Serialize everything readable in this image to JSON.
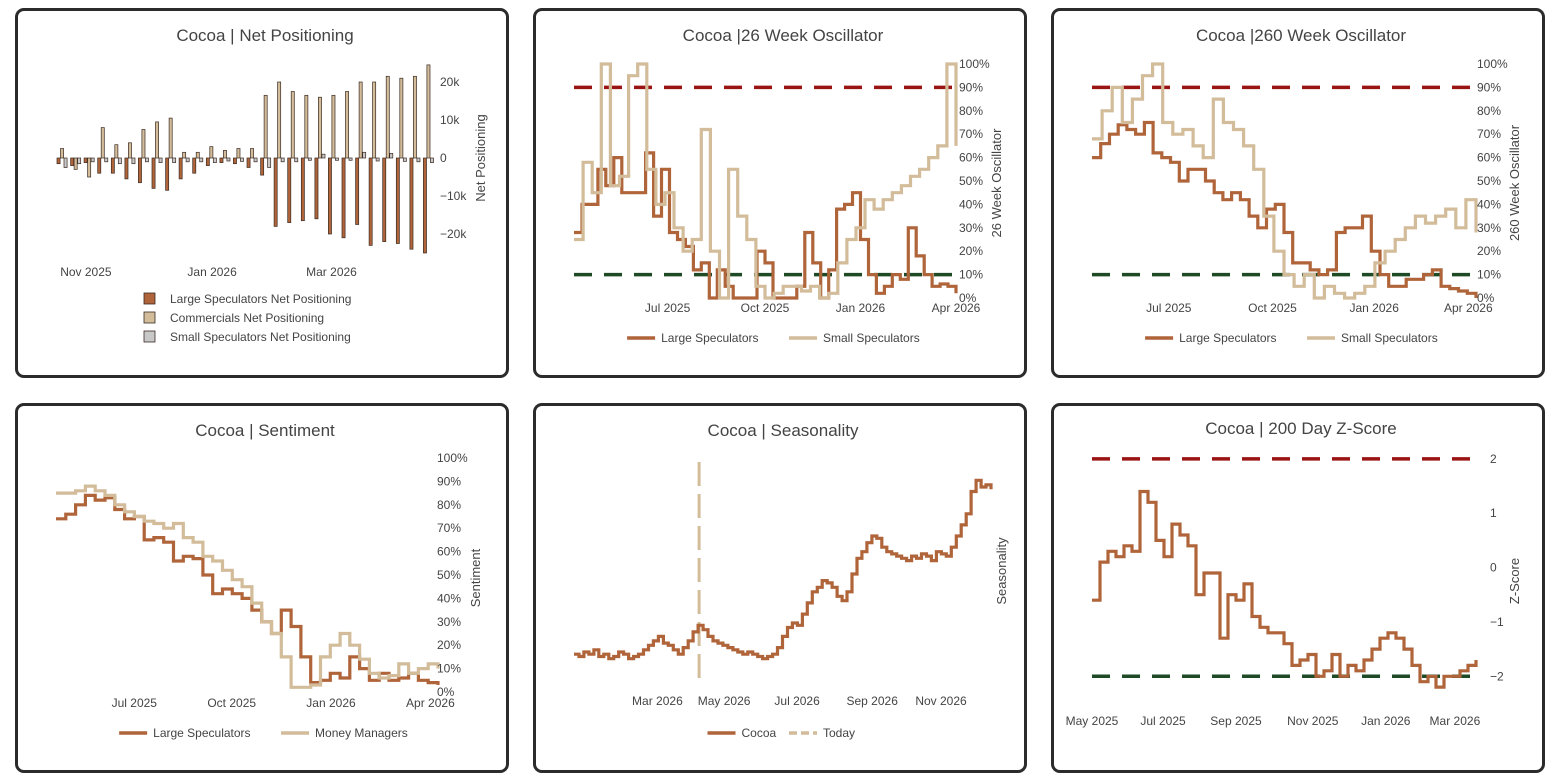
{
  "chart_data": [
    {
      "id": "net",
      "type": "bar",
      "title": "Cocoa | Net Positioning",
      "ylabel": "Net Positioning",
      "ylim": [
        -26000,
        26000
      ],
      "yticks": [
        {
          "v": 20000,
          "l": "20k"
        },
        {
          "v": 10000,
          "l": "10k"
        },
        {
          "v": 0,
          "l": "0"
        },
        {
          "v": -10000,
          "l": "−10k"
        },
        {
          "v": -20000,
          "l": "−20k"
        }
      ],
      "xticks": [
        {
          "i": 2.2,
          "l": "Nov 2025"
        },
        {
          "i": 11.5,
          "l": "Jan 2026"
        },
        {
          "i": 20.3,
          "l": "Mar 2026"
        }
      ],
      "colors": [
        "#b0643a",
        "#d2bc9a",
        "#c8c8c8"
      ],
      "series": [
        {
          "name": "Large Speculators Net Positioning",
          "values": [
            -1500,
            -2000,
            -1200,
            -4000,
            -4000,
            -5500,
            -6500,
            -8000,
            -8500,
            -5500,
            -4000,
            -2000,
            -1200,
            -1500,
            -2500,
            -4500,
            -18000,
            -17000,
            -16500,
            -16000,
            -20000,
            -21000,
            -17500,
            -23000,
            -22000,
            -22500,
            -24000,
            -25000
          ]
        },
        {
          "name": "Commercials Net Positioning",
          "values": [
            2500,
            -3000,
            -5000,
            8000,
            3500,
            4000,
            7500,
            9500,
            10500,
            1500,
            1500,
            3000,
            2000,
            2500,
            2500,
            16500,
            20000,
            17500,
            16500,
            16000,
            16500,
            17500,
            20000,
            20000,
            21500,
            21000,
            21500,
            24500
          ]
        },
        {
          "name": "Small Speculators Net Positioning",
          "values": [
            -2500,
            -1500,
            -1000,
            -1000,
            -1500,
            -1500,
            -1000,
            -1200,
            -1200,
            -1000,
            -1000,
            -1200,
            -800,
            -900,
            -1000,
            -2500,
            -1000,
            -1000,
            -600,
            1000,
            -600,
            -600,
            1500,
            -800,
            1200,
            -900,
            -1000,
            -1200
          ]
        }
      ]
    },
    {
      "id": "osc26",
      "type": "line",
      "title": "Cocoa |26 Week Oscillator",
      "ylabel": "26 Week Oscillator",
      "ylim": [
        0,
        100
      ],
      "yticks": [
        0,
        10,
        20,
        30,
        40,
        50,
        60,
        70,
        80,
        90,
        100
      ],
      "xticks": [
        {
          "t": 0.245,
          "l": "Jul 2025"
        },
        {
          "t": 0.5,
          "l": "Oct 2025"
        },
        {
          "t": 0.75,
          "l": "Jan 2026"
        },
        {
          "t": 1.0,
          "l": "Apr 2026"
        }
      ],
      "thresholds": [
        {
          "v": 90,
          "color": "#9b1414"
        },
        {
          "v": 10,
          "color": "#1e4a26"
        }
      ],
      "series": [
        {
          "name": "Large Speculators",
          "color": "#b0643a",
          "values": [
            28,
            40,
            40,
            55,
            48,
            60,
            45,
            45,
            45,
            62,
            35,
            55,
            28,
            25,
            22,
            12,
            15,
            0,
            12,
            5,
            0,
            0,
            0,
            20,
            15,
            0,
            0,
            0,
            5,
            28,
            15,
            0,
            12,
            38,
            40,
            45,
            25,
            10,
            2,
            5,
            10,
            8,
            30,
            18,
            10,
            5,
            6,
            5,
            2
          ]
        },
        {
          "name": "Small Speculators",
          "color": "#d2bc9a",
          "values": [
            25,
            58,
            45,
            100,
            48,
            52,
            95,
            100,
            55,
            40,
            45,
            30,
            20,
            25,
            72,
            20,
            0,
            55,
            35,
            25,
            5,
            0,
            2,
            5,
            5,
            3,
            5,
            0,
            2,
            15,
            25,
            30,
            42,
            38,
            42,
            45,
            48,
            52,
            55,
            60,
            65,
            100,
            65
          ]
        }
      ]
    },
    {
      "id": "osc260",
      "type": "line",
      "title": "Cocoa |260 Week Oscillator",
      "ylabel": "260 Week Oscillator",
      "ylim": [
        0,
        100
      ],
      "yticks": [
        0,
        10,
        20,
        30,
        40,
        50,
        60,
        70,
        80,
        90,
        100
      ],
      "xticks": [
        {
          "t": 0.2,
          "l": "Jul 2025"
        },
        {
          "t": 0.47,
          "l": "Oct 2025"
        },
        {
          "t": 0.735,
          "l": "Jan 2026"
        },
        {
          "t": 0.98,
          "l": "Apr 2026"
        }
      ],
      "thresholds": [
        {
          "v": 90,
          "color": "#9b1414"
        },
        {
          "v": 10,
          "color": "#1e4a26"
        }
      ],
      "series": [
        {
          "name": "Large Speculators",
          "color": "#b0643a",
          "values": [
            60,
            66,
            70,
            74,
            72,
            70,
            75,
            62,
            60,
            58,
            50,
            55,
            55,
            50,
            45,
            42,
            45,
            42,
            35,
            30,
            38,
            40,
            28,
            15,
            15,
            12,
            10,
            12,
            28,
            30,
            30,
            35,
            20,
            10,
            5,
            5,
            8,
            8,
            10,
            12,
            5,
            4,
            3,
            2,
            0
          ]
        },
        {
          "name": "Small Speculators",
          "color": "#d2bc9a",
          "values": [
            68,
            80,
            90,
            75,
            85,
            95,
            100,
            75,
            70,
            72,
            65,
            60,
            85,
            75,
            72,
            65,
            55,
            35,
            20,
            10,
            5,
            10,
            0,
            5,
            2,
            0,
            2,
            5,
            15,
            20,
            25,
            30,
            35,
            32,
            35,
            38,
            30,
            42,
            28
          ]
        }
      ]
    },
    {
      "id": "sent",
      "type": "line",
      "title": "Cocoa | Sentiment",
      "ylabel": "Sentiment",
      "ylim": [
        0,
        100
      ],
      "yticks": [
        0,
        10,
        20,
        30,
        40,
        50,
        60,
        70,
        80,
        90,
        100
      ],
      "xticks": [
        {
          "t": 0.205,
          "l": "Jul 2025"
        },
        {
          "t": 0.46,
          "l": "Oct 2025"
        },
        {
          "t": 0.72,
          "l": "Jan 2026"
        },
        {
          "t": 0.98,
          "l": "Apr 2026"
        }
      ],
      "series": [
        {
          "name": "Large Speculators",
          "color": "#b0643a",
          "values": [
            74,
            76,
            80,
            84,
            82,
            83,
            78,
            74,
            75,
            65,
            66,
            64,
            56,
            58,
            57,
            50,
            42,
            44,
            42,
            40,
            35,
            30,
            25,
            35,
            28,
            15,
            4,
            5,
            8,
            6,
            15,
            10,
            5,
            8,
            5,
            6,
            8,
            5,
            4,
            3
          ]
        },
        {
          "name": "Money Managers",
          "color": "#d2bc9a",
          "values": [
            85,
            85,
            86,
            88,
            86,
            84,
            80,
            77,
            75,
            73,
            72,
            70,
            72,
            66,
            64,
            58,
            56,
            52,
            48,
            45,
            38,
            30,
            25,
            15,
            2,
            2,
            3,
            15,
            20,
            25,
            20,
            14,
            8,
            6,
            7,
            12,
            8,
            10,
            12,
            10
          ]
        }
      ]
    },
    {
      "id": "season",
      "type": "line",
      "title": "Cocoa | Seasonality",
      "ylabel": "Seasonality",
      "ylim": [
        0,
        100
      ],
      "xticks": [
        {
          "t": 0.2,
          "l": "Mar 2026"
        },
        {
          "t": 0.36,
          "l": "May 2026"
        },
        {
          "t": 0.535,
          "l": "Jul 2026"
        },
        {
          "t": 0.715,
          "l": "Sep 2026"
        },
        {
          "t": 0.88,
          "l": "Nov 2026"
        }
      ],
      "today": 0.3,
      "series": [
        {
          "name": "Cocoa",
          "color": "#b0643a",
          "values": [
            12,
            11,
            13,
            12,
            14,
            11,
            12,
            10,
            11,
            13,
            12,
            10,
            11,
            12,
            14,
            16,
            18,
            20,
            17,
            16,
            14,
            12,
            15,
            18,
            22,
            25,
            23,
            20,
            18,
            17,
            16,
            15,
            14,
            13,
            12,
            13,
            12,
            11,
            10,
            11,
            12,
            15,
            20,
            24,
            26,
            25,
            30,
            35,
            40,
            42,
            45,
            44,
            42,
            38,
            36,
            40,
            48,
            55,
            58,
            62,
            65,
            64,
            60,
            58,
            57,
            56,
            55,
            54,
            56,
            55,
            57,
            56,
            54,
            58,
            57,
            56,
            60,
            65,
            70,
            75,
            85,
            90,
            87,
            88,
            86
          ]
        },
        {
          "name": "Today",
          "color": "#d2bc9a",
          "values": []
        }
      ]
    },
    {
      "id": "zscore",
      "type": "line",
      "title": "Cocoa | 200 Day Z-Score",
      "ylabel": "Z-Score",
      "ylim": [
        -2.4,
        2.2
      ],
      "yticks": [
        2,
        1,
        0,
        -1,
        -2
      ],
      "xticks": [
        {
          "t": 0.0,
          "l": "May 2025"
        },
        {
          "t": 0.185,
          "l": "Jul 2025"
        },
        {
          "t": 0.375,
          "l": "Sep 2025"
        },
        {
          "t": 0.575,
          "l": "Nov 2025"
        },
        {
          "t": 0.765,
          "l": "Jan 2026"
        },
        {
          "t": 0.945,
          "l": "Mar 2026"
        }
      ],
      "thresholds": [
        {
          "v": 2,
          "color": "#9b1414"
        },
        {
          "v": -2,
          "color": "#1e4a26"
        }
      ],
      "series": [
        {
          "name": "Cocoa",
          "color": "#b0643a",
          "values": [
            -0.6,
            0.1,
            0.3,
            0.2,
            0.4,
            0.3,
            1.4,
            1.2,
            0.5,
            0.2,
            0.8,
            0.6,
            0.4,
            -0.5,
            -0.1,
            -0.1,
            -1.3,
            -0.5,
            -0.6,
            -0.3,
            -0.9,
            -1.1,
            -1.2,
            -1.2,
            -1.4,
            -1.8,
            -1.7,
            -1.6,
            -2.0,
            -1.9,
            -1.6,
            -2.0,
            -1.8,
            -1.9,
            -1.7,
            -1.5,
            -1.3,
            -1.2,
            -1.3,
            -1.5,
            -1.8,
            -2.1,
            -2.0,
            -2.2,
            -2.0,
            -2.0,
            -1.9,
            -1.8,
            -1.7
          ]
        }
      ]
    }
  ]
}
